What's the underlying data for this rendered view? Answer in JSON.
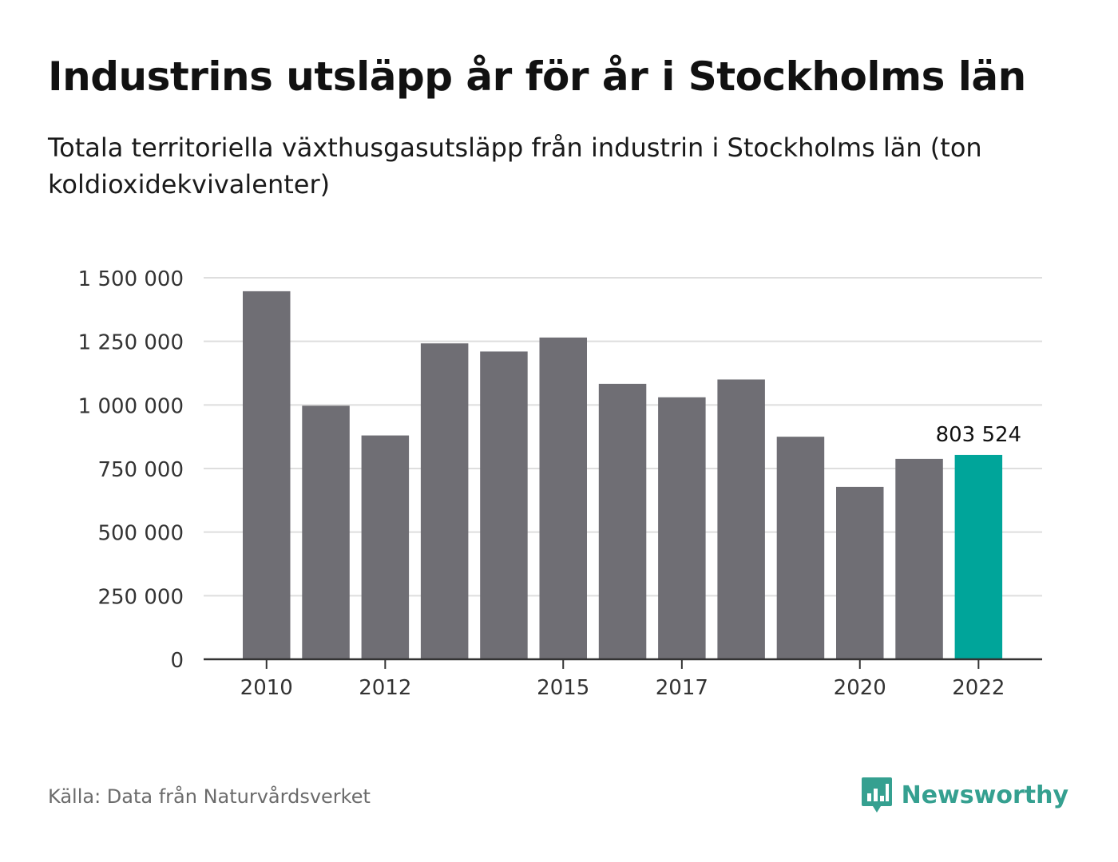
{
  "title": "Industrins utsläpp år för år i Stockholms län",
  "subtitle": "Totala territoriella växthusgasutsläpp från industrin i Stockholms län (ton koldioxidekvivalenter)",
  "source": "Källa: Data från Naturvårdsverket",
  "brand": {
    "name": "Newsworthy",
    "icon": "bar-chart-icon",
    "color": "#35a090"
  },
  "chart_data": {
    "type": "bar",
    "title": "Industrins utsläpp år för år i Stockholms län",
    "subtitle": "Totala territoriella växthusgasutsläpp från industrin i Stockholms län (ton koldioxidekvivalenter)",
    "xlabel": "",
    "ylabel": "",
    "categories": [
      "2010",
      "2011",
      "2012",
      "2013",
      "2014",
      "2015",
      "2016",
      "2017",
      "2018",
      "2019",
      "2020",
      "2021",
      "2022"
    ],
    "values": [
      1447000,
      997000,
      880000,
      1242000,
      1210000,
      1265000,
      1083000,
      1030000,
      1100000,
      875000,
      678000,
      788000,
      803524
    ],
    "x_tick_labels": [
      "2010",
      "2012",
      "2015",
      "2017",
      "2020",
      "2022"
    ],
    "y_ticks": [
      0,
      250000,
      500000,
      750000,
      1000000,
      1250000,
      1500000
    ],
    "y_tick_labels": [
      "0",
      "250 000",
      "500 000",
      "750 000",
      "1 000 000",
      "1 250 000",
      "1 500 000"
    ],
    "ylim": [
      0,
      1500000
    ],
    "grid": true,
    "highlight_index": 12,
    "highlight_label": "803 524",
    "colors": {
      "bar": "#6f6e74",
      "highlight": "#00a59a",
      "grid": "#dedede",
      "axis": "#333333"
    }
  }
}
